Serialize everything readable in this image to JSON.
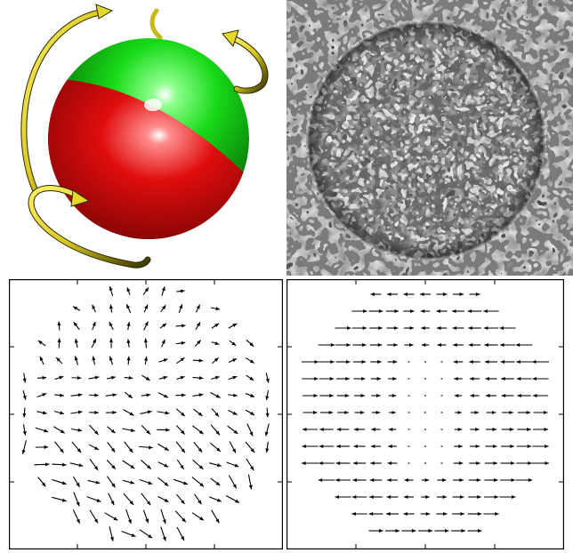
{
  "colors": {
    "sphere_green": "#16d416",
    "sphere_red": "#d40b0b",
    "rotation_arrows": "#e6d82a",
    "arrow_outline": "#2a2a00",
    "field_arrows": "#000000",
    "texture_dark": "#111111",
    "texture_light": "#f2f2f2"
  },
  "icons": {
    "rotation_arrows": "curved-rotation-arrow-icon",
    "field_vectors": "vector-arrow-icon"
  },
  "panels": [
    {
      "name": "rotating-two-color-sphere",
      "kind": "3d-illustration"
    },
    {
      "name": "noise-textured-sphere",
      "kind": "texture-image"
    },
    {
      "name": "vector-field-left",
      "kind": "vector-field-plot"
    },
    {
      "name": "vector-field-right",
      "kind": "vector-field-plot"
    }
  ]
}
